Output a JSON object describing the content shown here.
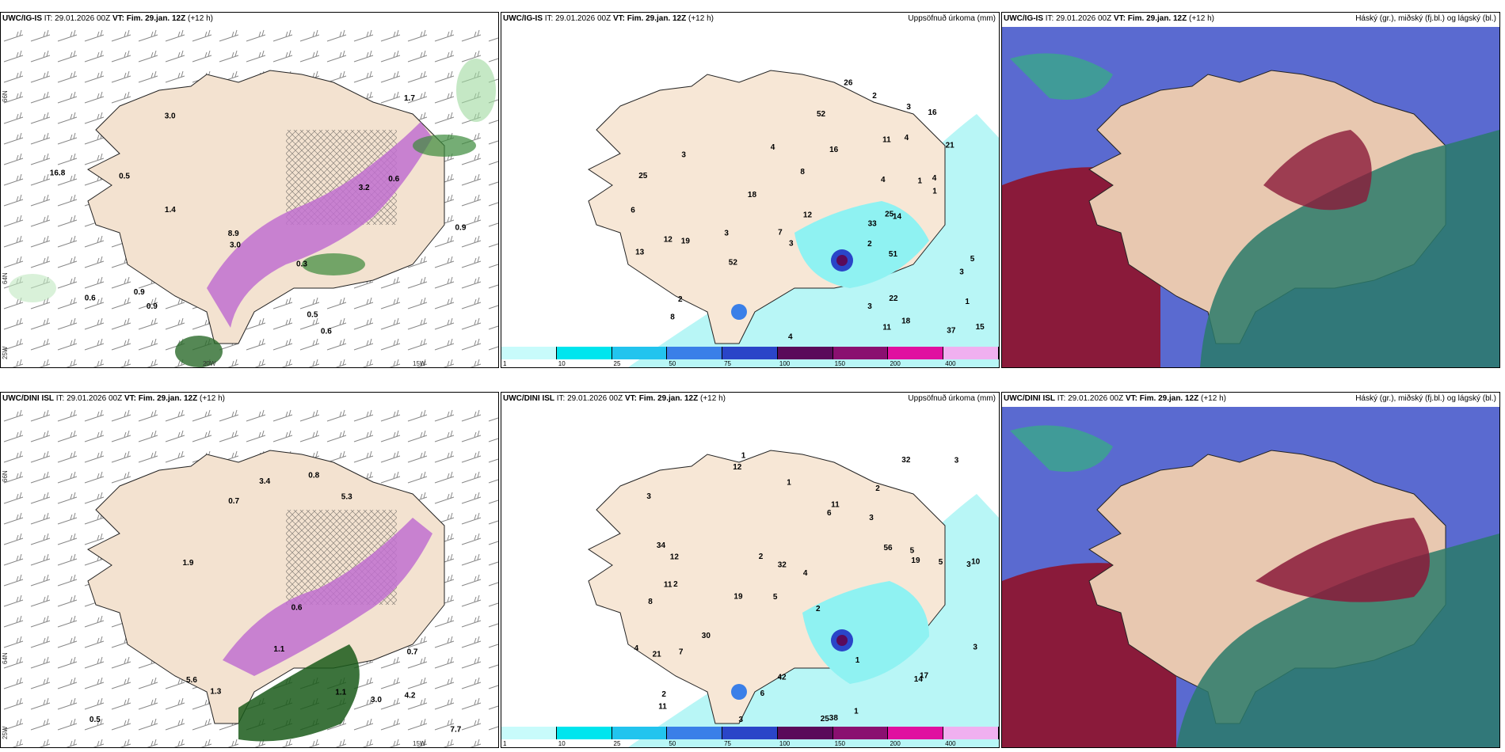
{
  "rows": [
    {
      "panels": [
        {
          "model": "UWC/IG-IS",
          "it": "IT: 29.01.2026 00Z",
          "vt_label": "VT:",
          "vt": "Fim. 29.jan. 12Z",
          "lead": "(+12 h)",
          "right": ""
        },
        {
          "model": "UWC/IG-IS",
          "it": "IT: 29.01.2026 00Z",
          "vt_label": "VT:",
          "vt": "Fim. 29.jan. 12Z",
          "lead": "(+12 h)",
          "right": "Uppsöfnuð úrkoma (mm)"
        },
        {
          "model": "UWC/IG-IS",
          "it": "IT: 29.01.2026 00Z",
          "vt_label": "VT:",
          "vt": "Fim. 29.jan. 12Z",
          "lead": "(+12 h)",
          "right": "Háský (gr.), miðský (fj.bl.) og lágský (bl.)"
        }
      ]
    },
    {
      "panels": [
        {
          "model": "UWC/DINI ISL",
          "it": "IT: 29.01.2026 00Z",
          "vt_label": "VT:",
          "vt": "Fim. 29.jan. 12Z",
          "lead": "(+12 h)",
          "right": ""
        },
        {
          "model": "UWC/DINI ISL",
          "it": "IT: 29.01.2026 00Z",
          "vt_label": "VT:",
          "vt": "Fim. 29.jan. 12Z",
          "lead": "(+12 h)",
          "right": "Uppsöfnuð úrkoma (mm)"
        },
        {
          "model": "UWC/DINI ISL",
          "it": "IT: 29.01.2026 00Z",
          "vt_label": "VT:",
          "vt": "Fim. 29.jan. 12Z",
          "lead": "(+12 h)",
          "right": "Háský (gr.), miðský (fj.bl.) og lágský (bl.)"
        }
      ]
    }
  ],
  "axis_labels": {
    "lat66": "66N",
    "lat64": "64N",
    "lon25": "25W",
    "lon20": "20W",
    "lon15": "15W"
  },
  "precip_legend": {
    "ticks": [
      "1",
      "10",
      "25",
      "50",
      "75",
      "100",
      "150",
      "200",
      "400"
    ],
    "colors": [
      "#c8fbfb",
      "#00e5ee",
      "#22c4ee",
      "#3a7fe8",
      "#2a45c8",
      "#5a0a5a",
      "#8a1070",
      "#e010a0",
      "#f0b0f0"
    ]
  },
  "wind_values_top": [
    "0.6",
    "3.0",
    "0.9",
    "0.5",
    "0.6",
    "0.5",
    "0.9",
    "1.4",
    "3.0",
    "0.9",
    "0.6",
    "16.8",
    "8.9",
    "0.3",
    "3.2",
    "1.7"
  ],
  "wind_values_bottom": [
    "0.5",
    "0.7",
    "0.6",
    "1.1",
    "0.7",
    "0.8",
    "4.2",
    "5.3",
    "3.0",
    "5.6",
    "7.7",
    "1.9",
    "1.3",
    "3.4",
    "1.1"
  ],
  "precip_values_top": [
    "2",
    "5",
    "1",
    "3",
    "3",
    "4",
    "4",
    "8",
    "1",
    "18",
    "25",
    "33",
    "13",
    "51",
    "52",
    "37",
    "16",
    "12",
    "3",
    "4",
    "3",
    "6",
    "4",
    "2",
    "1",
    "2",
    "3",
    "11",
    "15",
    "19",
    "21",
    "26",
    "25",
    "22",
    "18",
    "8",
    "16",
    "12",
    "14",
    "11",
    "7",
    "3",
    "52",
    "4"
  ],
  "precip_values_bottom": [
    "1",
    "2",
    "3",
    "5",
    "2",
    "2",
    "3",
    "3",
    "8",
    "6",
    "4",
    "11",
    "12",
    "19",
    "25",
    "38",
    "42",
    "32",
    "56",
    "30",
    "12",
    "11",
    "10",
    "5",
    "4",
    "34",
    "32",
    "19",
    "17",
    "21",
    "14",
    "11",
    "7",
    "2",
    "1",
    "3",
    "5",
    "6",
    "3",
    "1",
    "2",
    "3",
    "1"
  ]
}
